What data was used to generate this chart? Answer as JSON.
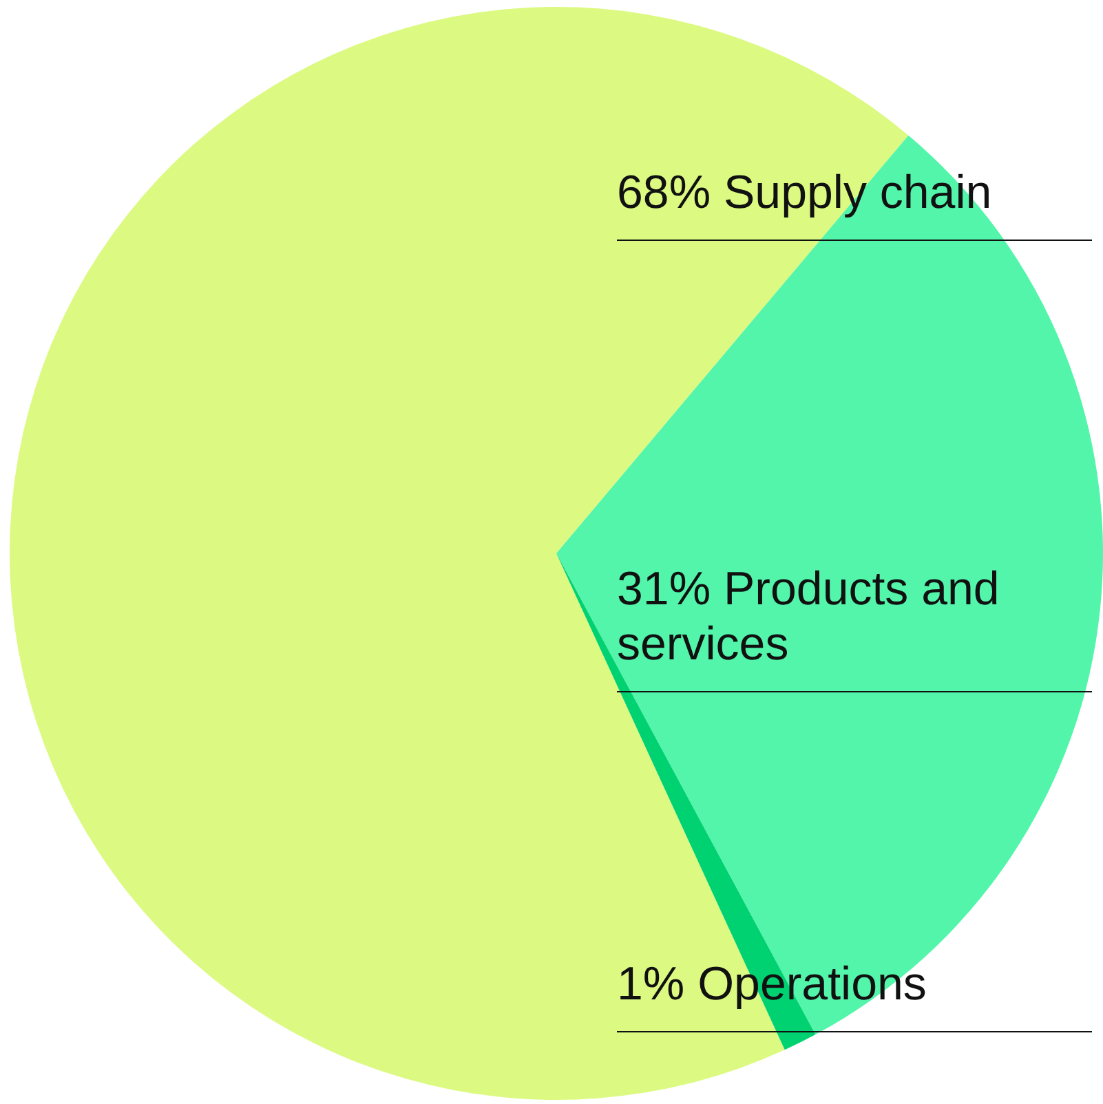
{
  "chart_data": {
    "type": "pie",
    "categories": [
      "Supply chain",
      "Products and services",
      "Operations"
    ],
    "values": [
      68,
      31,
      1
    ],
    "colors": [
      "#dcfa82",
      "#52f5aa",
      "#00d272"
    ],
    "value_labels": [
      "68%",
      "31%",
      "1%"
    ]
  }
}
